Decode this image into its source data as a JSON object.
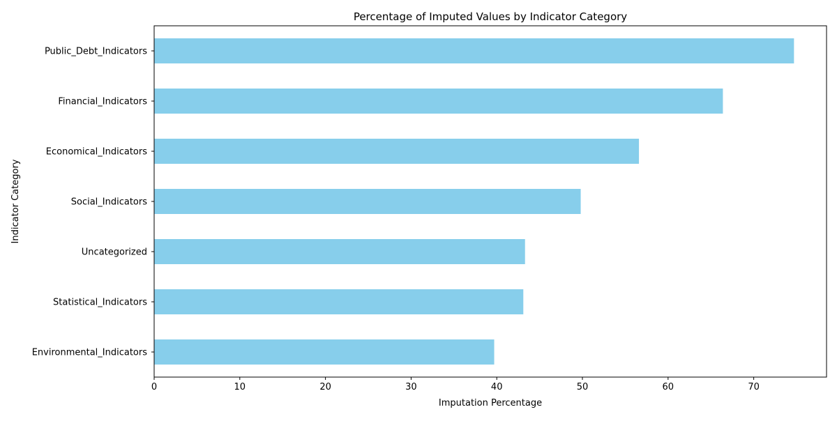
{
  "chart_data": {
    "type": "bar",
    "orientation": "horizontal",
    "title": "Percentage of Imputed Values by Indicator Category",
    "xlabel": "Imputation Percentage",
    "ylabel": "Indicator Category",
    "categories": [
      "Public_Debt_Indicators",
      "Financial_Indicators",
      "Economical_Indicators",
      "Social_Indicators",
      "Uncategorized",
      "Statistical_Indicators",
      "Environmental_Indicators"
    ],
    "values": [
      74.7,
      66.4,
      56.6,
      49.8,
      43.3,
      43.1,
      39.7
    ],
    "xlim": [
      0,
      78.5
    ],
    "xticks": [
      0,
      10,
      20,
      30,
      40,
      50,
      60,
      70
    ],
    "grid": false,
    "legend": "none",
    "bar_color": "#87ceeb"
  }
}
